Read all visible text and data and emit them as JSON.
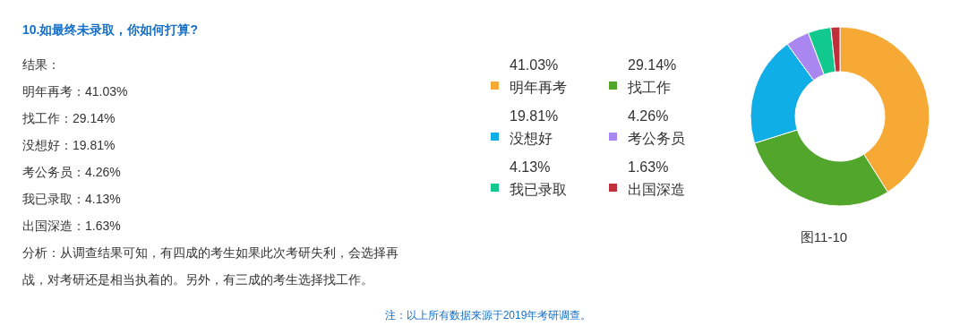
{
  "chart_data": {
    "type": "donut",
    "title": "10.如最终未录取，你如何打算?",
    "categories": [
      "明年再考",
      "找工作",
      "没想好",
      "考公务员",
      "我已录取",
      "出国深造"
    ],
    "values": [
      41.03,
      29.14,
      19.81,
      4.26,
      4.13,
      1.63
    ],
    "colors": [
      "#f7a935",
      "#52a62c",
      "#10aee7",
      "#a986f0",
      "#12c98d",
      "#c0303a"
    ],
    "value_labels": [
      "41.03%",
      "29.14%",
      "19.81%",
      "4.26%",
      "4.13%",
      "1.63%"
    ],
    "legend": "left",
    "annotations": [
      "结果：",
      "明年再考：41.03%",
      "找工作：29.14%",
      "没想好：19.81%",
      "考公务员：4.26%",
      "我已录取：4.13%",
      "出国深造：1.63%",
      "分析：从调查结果可知，有四成的考生如果此次考研失利，会选择再",
      "战，对考研还是相当执着的。另外，有三成的考生选择找工作。",
      "图11-10",
      "注：以上所有数据来源于2019年考研调查。"
    ]
  }
}
